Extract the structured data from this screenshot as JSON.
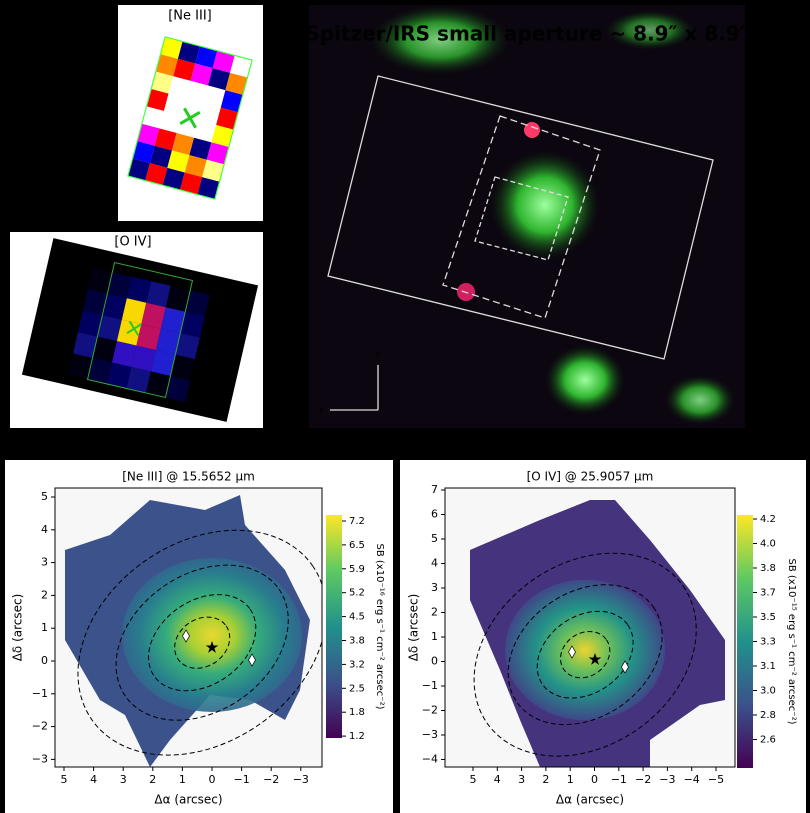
{
  "thumbnails": {
    "ne3": {
      "label": "[Ne III]"
    },
    "o4": {
      "label": "[O IV]"
    }
  },
  "spitzer": {
    "title": "Spitzer/IRS small aperture ~ 8.9″ x 8.9″",
    "north": "N",
    "east": "E"
  },
  "panels": [
    {
      "title": "[Ne III] @ 15.5652 µm",
      "x_label": "Δα (arcsec)",
      "y_label": "Δδ (arcsec)",
      "x_ticks": [
        "5",
        "4",
        "3",
        "2",
        "1",
        "0",
        "−1",
        "−2",
        "−3"
      ],
      "y_ticks": [
        "5",
        "4",
        "3",
        "2",
        "1",
        "0",
        "−1",
        "−2",
        "−3"
      ],
      "colorbar_label": "SB (x10⁻¹⁶ erg s⁻¹ cm⁻² arcsec⁻²)",
      "colorbar_ticks": [
        "7.2",
        "6.5",
        "5.9",
        "5.2",
        "4.5",
        "3.8",
        "3.2",
        "2.5",
        "1.8",
        "1.2"
      ]
    },
    {
      "title": "[O IV] @ 25.9057 µm",
      "x_label": "Δα (arcsec)",
      "y_label": "Δδ (arcsec)",
      "x_ticks": [
        "5",
        "4",
        "3",
        "2",
        "1",
        "0",
        "−1",
        "−2",
        "−3",
        "−4",
        "−5"
      ],
      "y_ticks": [
        "7",
        "6",
        "5",
        "4",
        "3",
        "2",
        "1",
        "0",
        "−1",
        "−2",
        "−3",
        "−4"
      ],
      "colorbar_label": "SB (x10⁻¹⁵ erg s⁻¹ cm⁻² arcsec⁻²)",
      "colorbar_ticks": [
        "4.2",
        "4.0",
        "3.8",
        "3.7",
        "3.5",
        "3.3",
        "3.1",
        "3.0",
        "2.8",
        "2.6"
      ]
    }
  ]
}
